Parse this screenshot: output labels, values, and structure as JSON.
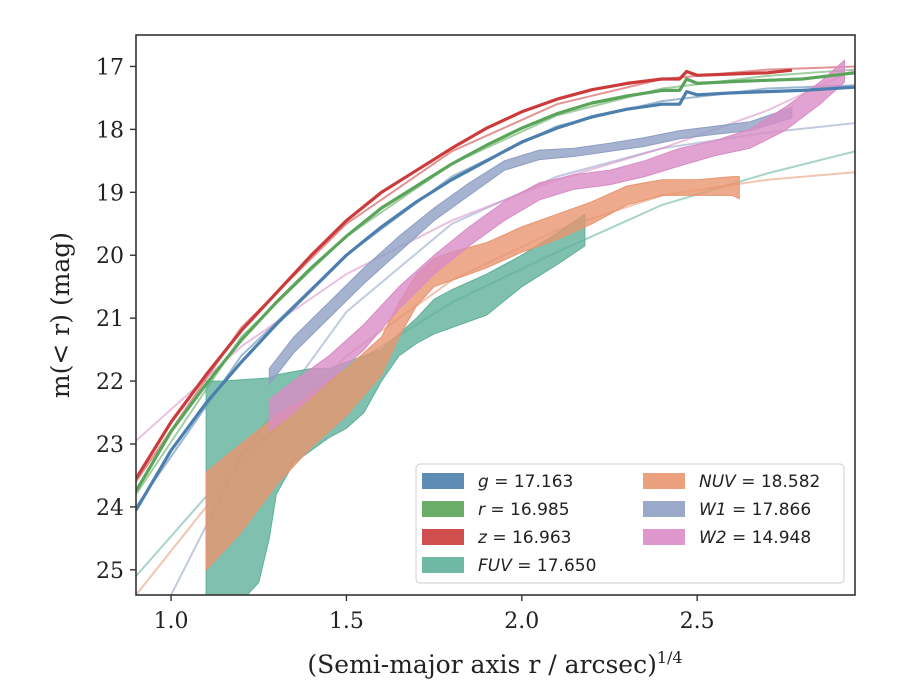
{
  "chart_data": {
    "type": "line",
    "xlabel": "(Semi-major axis r / arcsec)",
    "xlabel_superscript": "1/4",
    "ylabel": "m(< r) (mag)",
    "xlim": [
      0.9,
      2.95
    ],
    "ylim": [
      25.4,
      16.5
    ],
    "y_inverted": true,
    "grid": false,
    "x_ticks": [
      1.0,
      1.5,
      2.0,
      2.5
    ],
    "x_tick_labels": [
      "1.0",
      "1.5",
      "2.0",
      "2.5"
    ],
    "y_ticks": [
      17,
      18,
      19,
      20,
      21,
      22,
      23,
      24,
      25
    ],
    "y_tick_labels": [
      "17",
      "18",
      "19",
      "20",
      "21",
      "22",
      "23",
      "24",
      "25"
    ],
    "legend": {
      "location": "lower-right",
      "columns": [
        [
          "g = 17.163",
          "r = 16.985",
          "z = 16.963",
          "FUV = 17.650"
        ],
        [
          "NUV = 18.582",
          "W1 = 17.866",
          "W2 = 14.948"
        ]
      ]
    },
    "series": [
      {
        "name": "g = 17.163",
        "color": "#4c7fad",
        "style": "line",
        "x": [
          0.9,
          1.0,
          1.1,
          1.2,
          1.3,
          1.4,
          1.5,
          1.6,
          1.7,
          1.8,
          1.9,
          2.0,
          2.1,
          2.2,
          2.3,
          2.4,
          2.45,
          2.47,
          2.5,
          2.6,
          2.7,
          2.8,
          2.95
        ],
        "y": [
          24.05,
          23.1,
          22.35,
          21.7,
          21.1,
          20.55,
          20.0,
          19.55,
          19.15,
          18.8,
          18.5,
          18.2,
          17.98,
          17.8,
          17.68,
          17.6,
          17.6,
          17.4,
          17.45,
          17.42,
          17.4,
          17.38,
          17.33
        ],
        "model": {
          "x": [
            0.9,
            1.2,
            1.5,
            1.8,
            2.1,
            2.4,
            2.7,
            2.95
          ],
          "y": [
            24.0,
            21.6,
            20.0,
            18.75,
            17.95,
            17.55,
            17.35,
            17.3
          ]
        }
      },
      {
        "name": "r = 16.985",
        "color": "#5aa55a",
        "style": "line",
        "x": [
          0.9,
          1.0,
          1.1,
          1.2,
          1.3,
          1.4,
          1.5,
          1.6,
          1.7,
          1.8,
          1.9,
          2.0,
          2.1,
          2.2,
          2.3,
          2.4,
          2.45,
          2.47,
          2.5,
          2.6,
          2.7,
          2.8,
          2.95
        ],
        "y": [
          23.75,
          22.8,
          22.05,
          21.35,
          20.75,
          20.2,
          19.7,
          19.25,
          18.9,
          18.55,
          18.25,
          17.98,
          17.75,
          17.58,
          17.47,
          17.38,
          17.38,
          17.2,
          17.27,
          17.24,
          17.22,
          17.2,
          17.1
        ],
        "model": {
          "x": [
            0.9,
            1.2,
            1.5,
            1.8,
            2.1,
            2.4,
            2.7,
            2.95
          ],
          "y": [
            23.8,
            21.3,
            19.7,
            18.55,
            17.78,
            17.35,
            17.15,
            17.05
          ]
        }
      },
      {
        "name": "z = 16.963",
        "color": "#cc3b3b",
        "style": "line",
        "x": [
          0.9,
          1.0,
          1.1,
          1.2,
          1.3,
          1.4,
          1.5,
          1.6,
          1.7,
          1.8,
          1.9,
          2.0,
          2.1,
          2.2,
          2.3,
          2.4,
          2.45,
          2.47,
          2.5,
          2.6,
          2.7,
          2.77
        ],
        "y": [
          23.55,
          22.65,
          21.9,
          21.2,
          20.6,
          20.0,
          19.45,
          19.0,
          18.65,
          18.3,
          17.98,
          17.72,
          17.52,
          17.37,
          17.27,
          17.2,
          17.2,
          17.08,
          17.14,
          17.12,
          17.1,
          17.06
        ],
        "model": {
          "x": [
            0.9,
            1.2,
            1.5,
            1.8,
            2.1,
            2.4,
            2.7,
            2.95
          ],
          "y": [
            23.6,
            21.15,
            19.5,
            18.35,
            17.6,
            17.2,
            17.05,
            17.0
          ]
        }
      },
      {
        "name": "FUV = 17.650",
        "color": "#5fb09a",
        "style": "band",
        "x": [
          1.1,
          1.15,
          1.2,
          1.25,
          1.28,
          1.3,
          1.35,
          1.4,
          1.45,
          1.5,
          1.55,
          1.6,
          1.65,
          1.7,
          1.75,
          1.8,
          1.9,
          2.0,
          2.1,
          2.18
        ],
        "y_upper": [
          22.0,
          22.0,
          21.98,
          21.96,
          21.95,
          21.9,
          21.85,
          21.8,
          21.8,
          21.7,
          21.6,
          21.5,
          21.25,
          21.0,
          20.7,
          20.55,
          20.3,
          20.0,
          19.65,
          19.35
        ],
        "y_lower": [
          25.5,
          25.5,
          25.5,
          25.2,
          24.5,
          23.8,
          23.3,
          23.1,
          22.9,
          22.75,
          22.5,
          22.0,
          21.6,
          21.4,
          21.25,
          21.15,
          20.95,
          20.5,
          20.15,
          19.85
        ],
        "model": {
          "x": [
            0.9,
            1.2,
            1.5,
            1.8,
            2.1,
            2.4,
            2.7,
            2.95
          ],
          "y": [
            25.1,
            23.2,
            21.8,
            20.75,
            19.95,
            19.2,
            18.7,
            18.35
          ]
        }
      },
      {
        "name": "NUV = 18.582",
        "color": "#e8956f",
        "style": "band",
        "x": [
          1.1,
          1.2,
          1.3,
          1.4,
          1.5,
          1.6,
          1.65,
          1.7,
          1.75,
          1.8,
          1.9,
          2.0,
          2.1,
          2.2,
          2.3,
          2.4,
          2.5,
          2.6,
          2.62
        ],
        "y_upper": [
          23.45,
          23.0,
          22.55,
          22.2,
          21.8,
          21.3,
          20.75,
          20.3,
          20.05,
          19.95,
          19.8,
          19.55,
          19.35,
          19.15,
          18.9,
          18.8,
          18.8,
          18.75,
          18.75
        ],
        "y_lower": [
          25.0,
          24.4,
          23.65,
          23.05,
          22.55,
          21.9,
          21.3,
          20.8,
          20.5,
          20.4,
          20.2,
          19.95,
          19.75,
          19.5,
          19.2,
          19.05,
          19.05,
          19.05,
          19.1
        ],
        "model": {
          "x": [
            0.9,
            1.2,
            1.5,
            1.8,
            2.1,
            2.4,
            2.7,
            2.95
          ],
          "y": [
            25.4,
            23.3,
            21.6,
            20.4,
            19.6,
            19.05,
            18.8,
            18.68
          ]
        }
      },
      {
        "name": "W1 = 17.866",
        "color": "#8f9fc4",
        "style": "band",
        "x": [
          1.28,
          1.35,
          1.45,
          1.55,
          1.65,
          1.75,
          1.85,
          1.95,
          2.05,
          2.15,
          2.25,
          2.35,
          2.45,
          2.55,
          2.65,
          2.77
        ],
        "y_upper": [
          21.8,
          21.3,
          20.75,
          20.2,
          19.7,
          19.25,
          18.85,
          18.5,
          18.33,
          18.3,
          18.22,
          18.13,
          18.02,
          17.95,
          17.88,
          17.65
        ],
        "y_lower": [
          22.05,
          21.55,
          21.0,
          20.45,
          19.95,
          19.45,
          19.05,
          18.65,
          18.48,
          18.43,
          18.35,
          18.27,
          18.15,
          18.08,
          18.02,
          17.82
        ],
        "model": {
          "x": [
            0.9,
            1.2,
            1.5,
            1.8,
            2.1,
            2.4,
            2.7,
            2.95
          ],
          "y": [
            26.5,
            23.2,
            20.9,
            19.5,
            18.75,
            18.3,
            18.05,
            17.9
          ]
        }
      },
      {
        "name": "W2 = 14.948",
        "color": "#d98cc6",
        "style": "band",
        "x": [
          1.28,
          1.35,
          1.45,
          1.55,
          1.65,
          1.75,
          1.85,
          1.95,
          2.05,
          2.15,
          2.25,
          2.35,
          2.45,
          2.55,
          2.65,
          2.75,
          2.85,
          2.92
        ],
        "y_upper": [
          22.3,
          22.0,
          21.6,
          21.1,
          20.5,
          20.0,
          19.55,
          19.15,
          18.85,
          18.72,
          18.65,
          18.5,
          18.3,
          18.18,
          18.0,
          17.65,
          17.25,
          16.9
        ],
        "y_lower": [
          22.8,
          22.5,
          22.0,
          21.5,
          20.85,
          20.3,
          19.85,
          19.45,
          19.12,
          18.95,
          18.88,
          18.75,
          18.58,
          18.42,
          18.3,
          18.02,
          17.6,
          17.25
        ],
        "model": {
          "x": [
            0.9,
            1.2,
            1.5,
            1.8,
            2.1,
            2.4,
            2.7,
            2.95
          ],
          "y": [
            22.95,
            21.45,
            20.3,
            19.45,
            18.8,
            18.3,
            17.7,
            17.05
          ]
        }
      }
    ]
  }
}
